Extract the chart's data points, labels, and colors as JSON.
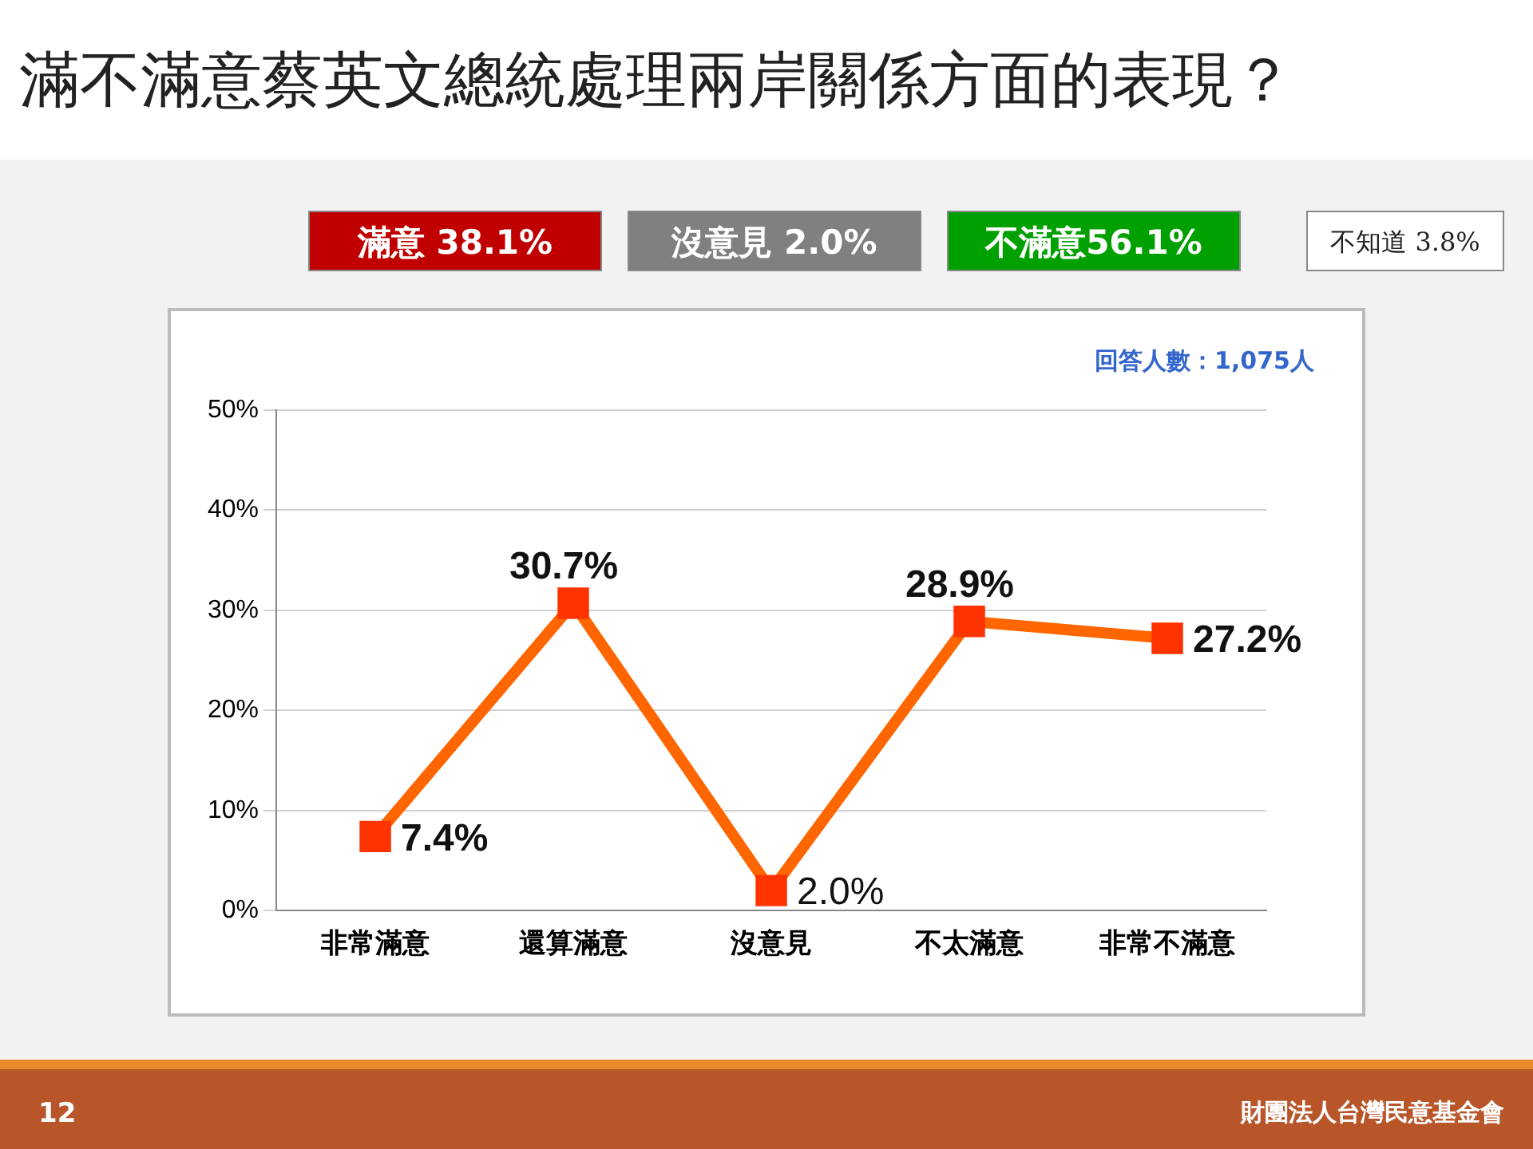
{
  "chart_data": {
    "type": "line",
    "title": "滿不滿意蔡英文總統處理兩岸關係方面的表現？",
    "categories": [
      "非常滿意",
      "還算滿意",
      "沒意見",
      "不太滿意",
      "非常不滿意"
    ],
    "values": [
      7.4,
      30.7,
      2.0,
      28.9,
      27.2
    ],
    "color": "#ff6600",
    "ylim": [
      0,
      50
    ],
    "yticks": [
      {
        "value": 0,
        "label": "0%"
      },
      {
        "value": 10,
        "label": "10%"
      },
      {
        "value": 20,
        "label": "20%"
      },
      {
        "value": 30,
        "label": "30%"
      },
      {
        "value": 40,
        "label": "40%"
      },
      {
        "value": 50,
        "label": "50%"
      }
    ],
    "value_labels": [
      "7.4%",
      "30.7%",
      "2.0%",
      "28.9%",
      "27.2%"
    ],
    "grid": "y",
    "legend": false,
    "marker": "square",
    "line_style": "solid",
    "annotations": [
      "滿意 38.1%",
      "沒意見 2.0%",
      "不滿意56.1%",
      "不知道 3.8%",
      "回答人數：1,075人",
      "12",
      "財團法人台灣民意基金會"
    ]
  }
}
